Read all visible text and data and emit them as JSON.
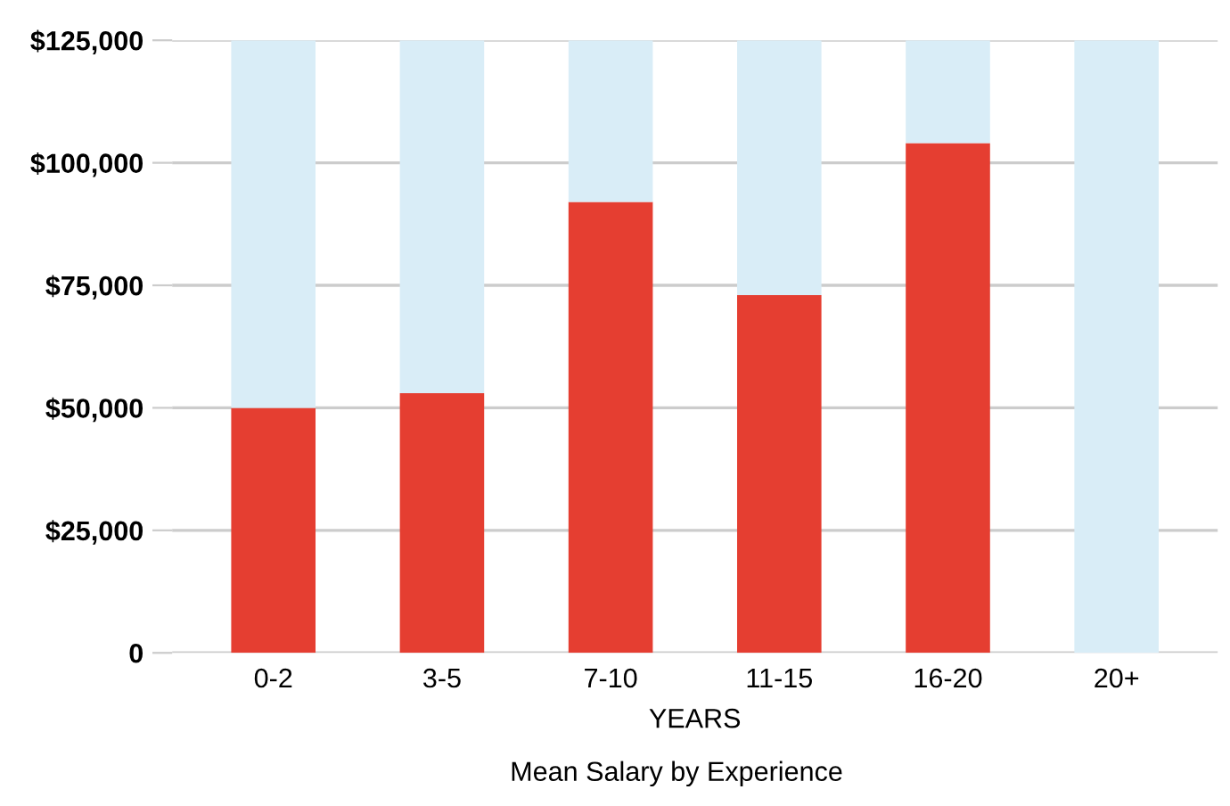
{
  "chart_data": {
    "type": "bar",
    "title": "Mean Salary by Experience",
    "xlabel": "YEARS",
    "categories": [
      "0-2",
      "3-5",
      "7-10",
      "11-15",
      "16-20",
      "20+"
    ],
    "stacked": true,
    "series": [
      {
        "color": "#e53e31",
        "values": [
          50000,
          53000,
          92000,
          73000,
          104000,
          null
        ]
      },
      {
        "color": "#d9edf7",
        "values": [
          75000,
          72000,
          33000,
          52000,
          21000,
          125000
        ]
      }
    ],
    "ylim": [
      0,
      125000
    ],
    "yticks": [
      {
        "value": 0,
        "label": "0"
      },
      {
        "value": 25000,
        "label": "$25,000"
      },
      {
        "value": 50000,
        "label": "$50,000"
      },
      {
        "value": 75000,
        "label": "$75,000"
      },
      {
        "value": 100000,
        "label": "$100,000"
      },
      {
        "value": 125000,
        "label": "$125,000"
      }
    ],
    "grid": "y",
    "legend": false
  }
}
